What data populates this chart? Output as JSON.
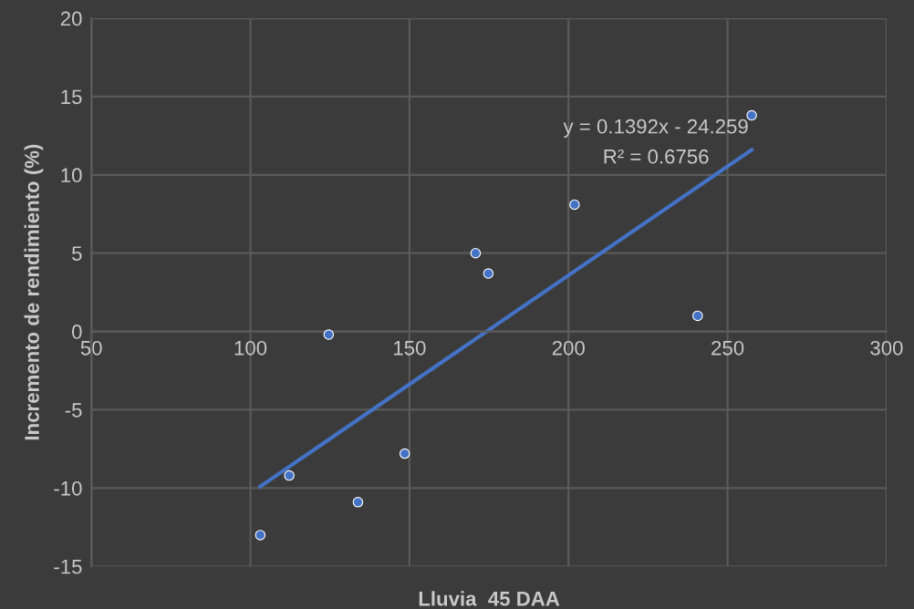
{
  "chart_data": {
    "type": "scatter",
    "xlabel": "Lluvia  45 DAA",
    "ylabel": "Incremento de rendimiento (%)",
    "series": [
      {
        "color": "#4472c4",
        "marker": "circle",
        "x": [
          103.1,
          112.2,
          124.6,
          133.8,
          148.5,
          170.8,
          174.8,
          201.9,
          240.6,
          257.6
        ],
        "values": [
          -13.0,
          -9.2,
          -0.2,
          -10.9,
          -7.8,
          5.0,
          3.7,
          8.1,
          1.0,
          13.8
        ]
      },
      {
        "type": "line",
        "marker": "none",
        "color": "#4472c4",
        "x": [
          103.1,
          257.6
        ],
        "values": [
          -9.9,
          11.6
        ]
      }
    ],
    "annotations": [
      "y = 0.1392x - 24.259",
      "R² = 0.6756"
    ],
    "xlim": [
      50,
      300
    ],
    "xticks": [
      50,
      100,
      150,
      200,
      250,
      300
    ],
    "ylim": [
      -15,
      20
    ],
    "yticks": [
      -15,
      -10,
      -5,
      0,
      5,
      10,
      15,
      20
    ],
    "grid": true
  }
}
